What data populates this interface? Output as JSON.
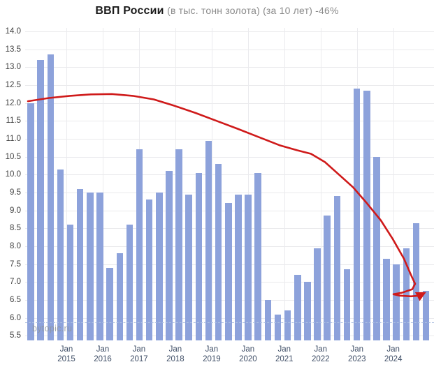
{
  "title": {
    "main": "ВВП России",
    "subtitle": "(в тыс. тонн золота) (за 10 лет) -46%"
  },
  "watermark": "bytopic.ru",
  "colors": {
    "bar": "#8da2db",
    "trend": "#cf1a1a",
    "grid": "#e9e9ec",
    "y_label": "#404040",
    "x_label": "#3f4e66",
    "subtitle": "#8b8b8b",
    "dashed_line": "#aec0e2",
    "watermark": "#8f969e"
  },
  "chart_data": {
    "type": "bar",
    "title": "ВВП России (в тыс. тонн золота) (за 10 лет) -46%",
    "ylabel": "",
    "xlabel": "",
    "unit": "тыс. тонн золота",
    "change_label": "-46%",
    "grid": true,
    "ylim": [
      5.37,
      14.11
    ],
    "y_ticks": [
      5.5,
      6.0,
      6.5,
      7.0,
      7.5,
      8.0,
      8.5,
      9.0,
      9.5,
      10.0,
      10.5,
      11.0,
      11.5,
      12.0,
      12.5,
      13.0,
      13.5,
      14.0
    ],
    "x_tick_labels": [
      {
        "line1": "Jan",
        "line2": "2015"
      },
      {
        "line1": "Jan",
        "line2": "2016"
      },
      {
        "line1": "Jan",
        "line2": "2017"
      },
      {
        "line1": "Jan",
        "line2": "2018"
      },
      {
        "line1": "Jan",
        "line2": "2019"
      },
      {
        "line1": "Jan",
        "line2": "2020"
      },
      {
        "line1": "Jan",
        "line2": "2021"
      },
      {
        "line1": "Jan",
        "line2": "2022"
      },
      {
        "line1": "Jan",
        "line2": "2023"
      },
      {
        "line1": "Jan",
        "line2": "2024"
      }
    ],
    "values": [
      12.0,
      13.2,
      13.35,
      10.15,
      8.6,
      9.6,
      9.5,
      9.5,
      7.4,
      7.8,
      8.6,
      10.7,
      9.3,
      9.5,
      10.1,
      10.7,
      9.45,
      10.05,
      10.95,
      10.3,
      9.2,
      9.45,
      9.45,
      10.05,
      6.5,
      6.1,
      6.2,
      7.2,
      7.0,
      7.95,
      8.85,
      9.4,
      7.35,
      12.4,
      12.35,
      10.5,
      7.65,
      7.5,
      7.95,
      8.65,
      6.75
    ],
    "dashed_baseline_value": 5.88,
    "trend_line": {
      "arrow": true,
      "points": [
        [
          40,
          12.05
        ],
        [
          70,
          12.14
        ],
        [
          100,
          12.2
        ],
        [
          130,
          12.24
        ],
        [
          160,
          12.25
        ],
        [
          190,
          12.2
        ],
        [
          220,
          12.1
        ],
        [
          250,
          11.92
        ],
        [
          280,
          11.72
        ],
        [
          310,
          11.5
        ],
        [
          340,
          11.28
        ],
        [
          370,
          11.05
        ],
        [
          400,
          10.82
        ],
        [
          425,
          10.68
        ],
        [
          445,
          10.58
        ],
        [
          465,
          10.35
        ],
        [
          485,
          10.0
        ],
        [
          505,
          9.65
        ],
        [
          525,
          9.2
        ],
        [
          545,
          8.72
        ],
        [
          562,
          8.2
        ],
        [
          578,
          7.65
        ],
        [
          588,
          7.2
        ],
        [
          594,
          6.95
        ],
        [
          590,
          6.8
        ],
        [
          575,
          6.7
        ],
        [
          563,
          6.66
        ],
        [
          572,
          6.62
        ],
        [
          588,
          6.6
        ],
        [
          600,
          6.62
        ],
        [
          606,
          6.68
        ]
      ]
    }
  }
}
